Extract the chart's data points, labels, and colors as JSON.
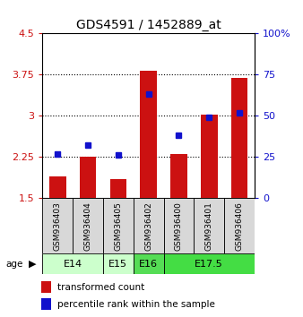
{
  "title": "GDS4591 / 1452889_at",
  "samples": [
    "GSM936403",
    "GSM936404",
    "GSM936405",
    "GSM936402",
    "GSM936400",
    "GSM936401",
    "GSM936406"
  ],
  "red_values": [
    1.9,
    2.25,
    1.85,
    3.82,
    2.3,
    3.02,
    3.68
  ],
  "blue_values": [
    27,
    32,
    26,
    63,
    38,
    49,
    52
  ],
  "ylim_left": [
    1.5,
    4.5
  ],
  "ylim_right": [
    0,
    100
  ],
  "yticks_left": [
    1.5,
    2.25,
    3.0,
    3.75,
    4.5
  ],
  "yticks_right": [
    0,
    25,
    50,
    75,
    100
  ],
  "ytick_labels_left": [
    "1.5",
    "2.25",
    "3",
    "3.75",
    "4.5"
  ],
  "ytick_labels_right": [
    "0",
    "25",
    "50",
    "75",
    "100%"
  ],
  "bar_color": "#cc1111",
  "marker_color": "#1111cc",
  "bar_bottom": 1.5,
  "age_groups": [
    {
      "label": "E14",
      "color": "#ccffcc",
      "start": 0,
      "end": 2
    },
    {
      "label": "E15",
      "color": "#ccffcc",
      "start": 2,
      "end": 3
    },
    {
      "label": "E16",
      "color": "#55dd55",
      "start": 3,
      "end": 4
    },
    {
      "label": "E17.5",
      "color": "#44dd44",
      "start": 4,
      "end": 7
    }
  ],
  "bar_width": 0.55,
  "background_color": "#d8d8d8",
  "plot_bg": "#ffffff",
  "legend_red_label": "transformed count",
  "legend_blue_label": "percentile rank within the sample",
  "grid_yticks": [
    2.25,
    3.0,
    3.75
  ]
}
